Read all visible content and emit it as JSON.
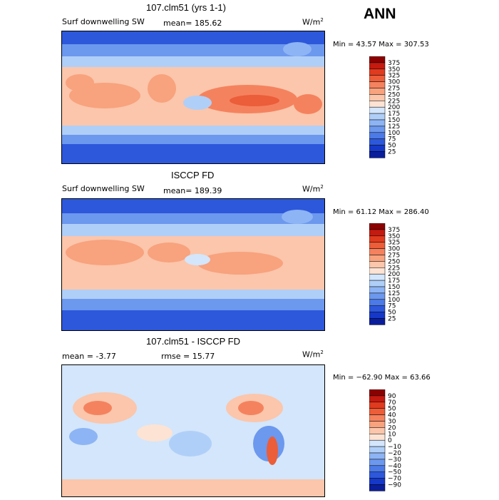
{
  "season": "ANN",
  "chart_data": [
    {
      "type": "heatmap",
      "title": "107.clm51 (yrs 1-1)",
      "variable": "Surf downwelling SW",
      "mean_label": "mean= 185.62",
      "units": "W/m",
      "units_exp": "2",
      "minmax": "Min =  43.57 Max = 307.53",
      "colorbar": {
        "levels": [
          "375",
          "350",
          "325",
          "300",
          "275",
          "250",
          "225",
          "200",
          "175",
          "150",
          "125",
          "100",
          "75",
          "50",
          "25"
        ],
        "colors": [
          "#8b0000",
          "#c41a10",
          "#e03b1f",
          "#ec5d39",
          "#f5825e",
          "#f8a27e",
          "#fbc6ab",
          "#fde3d3",
          "#d3e6fb",
          "#b0cff8",
          "#8db4f4",
          "#6c98ee",
          "#4c7ae6",
          "#2d58db",
          "#1638c8",
          "#0a1e9c"
        ]
      },
      "xlabel": "",
      "ylabel": ""
    },
    {
      "type": "heatmap",
      "title": "ISCCP FD",
      "variable": "Surf downwelling SW",
      "mean_label": "mean= 189.39",
      "units": "W/m",
      "units_exp": "2",
      "minmax": "Min =  61.12 Max = 286.40",
      "colorbar": {
        "levels": [
          "375",
          "350",
          "325",
          "300",
          "275",
          "250",
          "225",
          "200",
          "175",
          "150",
          "125",
          "100",
          "75",
          "50",
          "25"
        ],
        "colors": [
          "#8b0000",
          "#c41a10",
          "#e03b1f",
          "#ec5d39",
          "#f5825e",
          "#f8a27e",
          "#fbc6ab",
          "#fde3d3",
          "#d3e6fb",
          "#b0cff8",
          "#8db4f4",
          "#6c98ee",
          "#4c7ae6",
          "#2d58db",
          "#1638c8",
          "#0a1e9c"
        ]
      },
      "xlabel": "",
      "ylabel": ""
    },
    {
      "type": "heatmap",
      "title": "107.clm51 - ISCCP FD",
      "mean_label": "mean =   -3.77",
      "rmse_label": "rmse =   15.77",
      "units": "W/m",
      "units_exp": "2",
      "minmax": "Min = −62.90 Max =   63.66",
      "colorbar": {
        "levels": [
          "90",
          "70",
          "50",
          "40",
          "30",
          "20",
          "10",
          "0",
          "−10",
          "−20",
          "−30",
          "−40",
          "−50",
          "−70",
          "−90"
        ],
        "colors": [
          "#8b0000",
          "#c41a10",
          "#e03b1f",
          "#ec5d39",
          "#f5825e",
          "#f8a27e",
          "#fbc6ab",
          "#fde3d3",
          "#d3e6fb",
          "#b0cff8",
          "#8db4f4",
          "#6c98ee",
          "#4c7ae6",
          "#2d58db",
          "#1638c8",
          "#0a1e9c"
        ]
      },
      "xlabel": "",
      "ylabel": ""
    }
  ]
}
